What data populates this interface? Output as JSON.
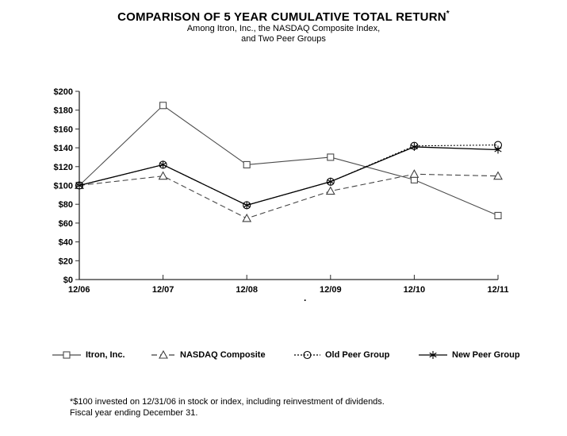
{
  "title": "COMPARISON OF 5 YEAR CUMULATIVE TOTAL RETURN",
  "title_asterisk": "*",
  "subtitle_line1": "Among Itron, Inc., the NASDAQ Composite Index,",
  "subtitle_line2": "and Two Peer Groups",
  "stray_dot": ".",
  "footnote_line1": "*$100 invested on 12/31/06 in stock or index, including reinvestment of dividends.",
  "footnote_line2": "Fiscal year ending December 31.",
  "colors": {
    "axis": "#2b2b2b",
    "text": "#000000"
  },
  "chart_data": {
    "type": "line",
    "title": "COMPARISON OF 5 YEAR CUMULATIVE TOTAL RETURN*",
    "xlabel": "",
    "ylabel": "",
    "categories": [
      "12/06",
      "12/07",
      "12/08",
      "12/09",
      "12/10",
      "12/11"
    ],
    "series": [
      {
        "name": "Itron, Inc.",
        "marker": "square",
        "line_style": "solid",
        "color": "#4a4a4a",
        "values": [
          100,
          185,
          122,
          130,
          106,
          68
        ]
      },
      {
        "name": "NASDAQ Composite",
        "marker": "triangle",
        "line_style": "dashed",
        "color": "#3f3f3f",
        "values": [
          100,
          110,
          65,
          94,
          112,
          110
        ]
      },
      {
        "name": "Old Peer Group",
        "marker": "circle",
        "line_style": "dotted",
        "color": "#000000",
        "values": [
          100,
          122,
          79,
          104,
          142,
          143
        ]
      },
      {
        "name": "New Peer Group",
        "marker": "star",
        "line_style": "solid",
        "color": "#000000",
        "values": [
          100,
          122,
          79,
          104,
          141,
          138
        ]
      }
    ],
    "ylim": [
      0,
      200
    ],
    "ytick_step": 20,
    "ytick_labels": [
      "$0",
      "$20",
      "$40",
      "$60",
      "$80",
      "$100",
      "$120",
      "$140",
      "$160",
      "$180",
      "$200"
    ],
    "grid": false,
    "legend_position": "bottom"
  }
}
